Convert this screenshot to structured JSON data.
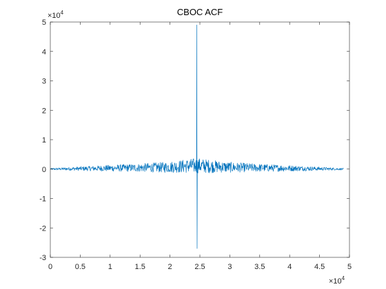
{
  "chart_data": {
    "type": "line",
    "title": "CBOC ACF",
    "xlabel": "",
    "ylabel": "",
    "xlim": [
      0,
      50000
    ],
    "ylim": [
      -30000,
      50000
    ],
    "x_ticks": [
      0,
      5000,
      10000,
      15000,
      20000,
      25000,
      30000,
      35000,
      40000,
      45000,
      50000
    ],
    "x_tick_labels": [
      "0",
      "0.5",
      "1",
      "1.5",
      "2",
      "2.5",
      "3",
      "3.5",
      "4",
      "4.5",
      "5"
    ],
    "y_ticks": [
      -30000,
      -20000,
      -10000,
      0,
      10000,
      20000,
      30000,
      40000,
      50000
    ],
    "y_tick_labels": [
      "-3",
      "-2",
      "-1",
      "0",
      "1",
      "2",
      "3",
      "4",
      "5"
    ],
    "x_exponent_base": "×10",
    "x_exponent_power": "4",
    "y_exponent_base": "×10",
    "y_exponent_power": "4",
    "grid": false,
    "legend": "none",
    "series": [
      {
        "color": "#0072BD",
        "x_range": [
          0,
          49000
        ],
        "peak": {
          "x": 24500,
          "max": 49000,
          "min": -27000
        },
        "envelope": [
          {
            "x": 0,
            "amp": 300
          },
          {
            "x": 5000,
            "amp": 700
          },
          {
            "x": 10000,
            "amp": 1100
          },
          {
            "x": 15000,
            "amp": 1400
          },
          {
            "x": 20000,
            "amp": 1900
          },
          {
            "x": 24500,
            "amp": 2600
          },
          {
            "x": 29000,
            "amp": 1900
          },
          {
            "x": 34000,
            "amp": 1400
          },
          {
            "x": 39000,
            "amp": 1100
          },
          {
            "x": 44000,
            "amp": 700
          },
          {
            "x": 49000,
            "amp": 300
          }
        ],
        "offset_profile": [
          {
            "x": 0,
            "offset": 0
          },
          {
            "x": 19000,
            "offset": 600
          },
          {
            "x": 24500,
            "offset": 1200
          },
          {
            "x": 30000,
            "offset": 600
          },
          {
            "x": 49000,
            "offset": 0
          }
        ]
      }
    ]
  }
}
